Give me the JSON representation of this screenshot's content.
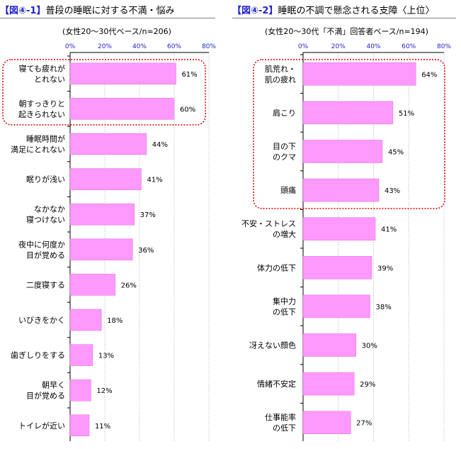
{
  "chart_data": [
    {
      "type": "bar",
      "orientation": "horizontal",
      "title_tag": "【図④-1】",
      "title": "普段の睡眠に対する不満・悩み",
      "subtitle": "(女性20～30代ベース/n=206)",
      "xlim": [
        0,
        80
      ],
      "ticks": [
        "0%",
        "20%",
        "40%",
        "60%",
        "80%"
      ],
      "grid": true,
      "categories": [
        [
          "寝ても疲れが",
          "とれない"
        ],
        [
          "朝すっきりと",
          "起きられない"
        ],
        [
          "睡眠時間が",
          "満足にとれない"
        ],
        [
          "眠りが浅い"
        ],
        [
          "なかなか",
          "寝つけない"
        ],
        [
          "夜中に何度か",
          "目が覚める"
        ],
        [
          "二度寝する"
        ],
        [
          "いびきをかく"
        ],
        [
          "歯ぎしりをする"
        ],
        [
          "朝早く",
          "目が覚める"
        ],
        [
          "トイレが近い"
        ]
      ],
      "values": [
        61,
        60,
        44,
        41,
        37,
        36,
        26,
        18,
        13,
        12,
        11
      ],
      "value_labels": [
        "61%",
        "60%",
        "44%",
        "41%",
        "37%",
        "36%",
        "26%",
        "18%",
        "13%",
        "12%",
        "11%"
      ],
      "highlight": [
        0,
        1
      ]
    },
    {
      "type": "bar",
      "orientation": "horizontal",
      "title_tag": "【図④-2】",
      "title": "睡眠の不調で懸念される支障〈上位〉",
      "subtitle": "(女性20～30代「不満」回答者ベース/n=194)",
      "xlim": [
        0,
        80
      ],
      "ticks": [
        "0%",
        "20%",
        "40%",
        "60%",
        "80%"
      ],
      "grid": true,
      "categories": [
        [
          "肌荒れ・",
          "肌の疲れ"
        ],
        [
          "肩こり"
        ],
        [
          "目の下",
          "のクマ"
        ],
        [
          "頭痛"
        ],
        [
          "不安・ストレス",
          "の増大"
        ],
        [
          "体力の低下"
        ],
        [
          "集中力",
          "の低下"
        ],
        [
          "冴えない顔色"
        ],
        [
          "情緒不安定"
        ],
        [
          "仕事能率",
          "の低下"
        ]
      ],
      "values": [
        64,
        51,
        45,
        43,
        41,
        39,
        38,
        30,
        29,
        27
      ],
      "value_labels": [
        "64%",
        "51%",
        "45%",
        "43%",
        "41%",
        "39%",
        "38%",
        "30%",
        "29%",
        "27%"
      ],
      "highlight": [
        0,
        1,
        2,
        3
      ]
    }
  ],
  "style": {
    "bar_fill": "#ff99ff",
    "bar_stroke": "#d86bd8",
    "axis_color": "#000000",
    "grid_color": "#b0b0b0",
    "tick_color": "#2222cc",
    "title_color": "#2222cc",
    "highlight_color": "#dd0000"
  }
}
